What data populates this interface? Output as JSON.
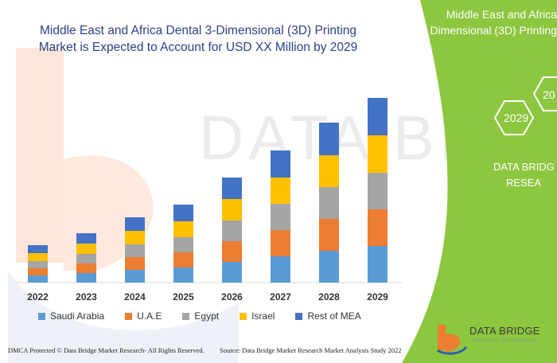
{
  "title_line1": "Middle East and Africa Dental 3-Dimensional (3D) Printing",
  "title_line2": "Market is Expected to Account for USD XX Million by 2029",
  "side_panel": {
    "title_line1": "Middle East and Africa",
    "title_line2": "Dimensional (3D) Printing",
    "hex_year_1": "2029",
    "hex_year_2": "20",
    "brand_line1": "DATA BRIDG",
    "brand_line2": "RESEA"
  },
  "watermark": "DATA BRIDGE",
  "logo": {
    "name": "DATA BRIDGE",
    "tagline": "MARKET RESEARCH"
  },
  "footer": {
    "left": "DMCA Protected © Data Bridge Market Research- All Rights Reserved.",
    "right": "Source: Data Bridge Market Research Market Analysis Study 2022"
  },
  "colors": {
    "saudi": "#5b9bd5",
    "uae": "#ed7d31",
    "egypt": "#a5a5a5",
    "israel": "#ffc000",
    "rest": "#4472c4",
    "panel_green": "#8dc63f",
    "title": "#2e3f86"
  },
  "chart_data": {
    "type": "bar",
    "stacked": true,
    "categories": [
      "2022",
      "2023",
      "2024",
      "2025",
      "2026",
      "2027",
      "2028",
      "2029"
    ],
    "series": [
      {
        "name": "Saudi Arabia",
        "values": [
          9,
          12,
          16,
          19,
          26,
          33,
          40,
          46
        ]
      },
      {
        "name": "U.A.E",
        "values": [
          9,
          12,
          16,
          19,
          26,
          33,
          40,
          46
        ]
      },
      {
        "name": "Egypt",
        "values": [
          9,
          12,
          16,
          19,
          26,
          33,
          40,
          46
        ]
      },
      {
        "name": "Israel",
        "values": [
          10,
          13,
          17,
          20,
          27,
          33,
          40,
          47
        ]
      },
      {
        "name": "Rest of MEA",
        "values": [
          10,
          13,
          17,
          21,
          27,
          34,
          41,
          47
        ]
      }
    ],
    "ylim": [
      0,
      240
    ],
    "grid": false,
    "legend": "bottom"
  }
}
